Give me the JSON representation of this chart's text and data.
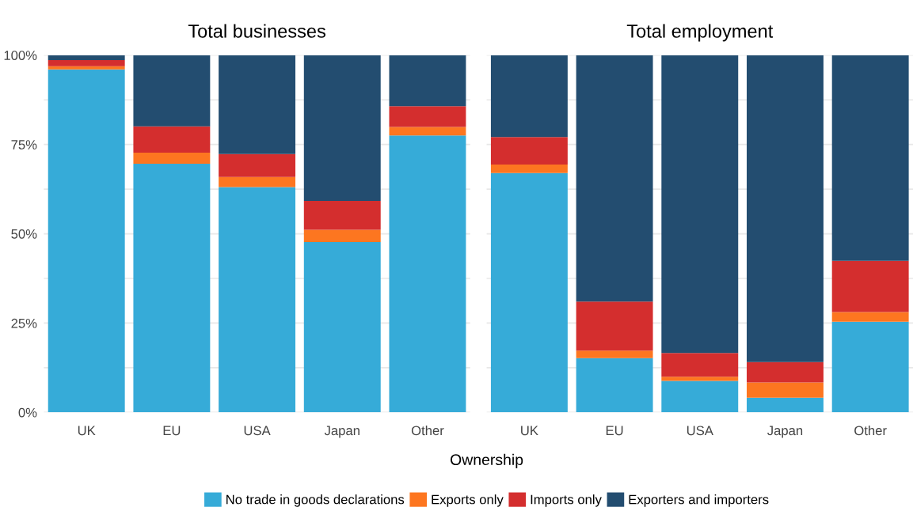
{
  "chart_data": [
    {
      "type": "bar",
      "title": "Total businesses",
      "xlabel": "Ownership",
      "stacked": true,
      "categories": [
        "UK",
        "EU",
        "USA",
        "Japan",
        "Other"
      ],
      "series": [
        {
          "name": "No trade in goods declarations",
          "color": "#36abd8",
          "values": [
            96.0,
            69.6,
            63.1,
            47.7,
            77.5
          ]
        },
        {
          "name": "Exports only",
          "color": "#fd7620",
          "values": [
            0.9,
            3.1,
            2.8,
            3.4,
            2.4
          ]
        },
        {
          "name": "Imports only",
          "color": "#d42e2e",
          "values": [
            1.7,
            7.4,
            6.4,
            8.1,
            5.8
          ]
        },
        {
          "name": "Exporters and importers",
          "color": "#234d70",
          "values": [
            1.4,
            19.9,
            27.7,
            40.8,
            14.3
          ]
        }
      ],
      "ylim": [
        0,
        100
      ],
      "yticks": [
        {
          "value": 0,
          "label": "0%"
        },
        {
          "value": 12.5,
          "label": null
        },
        {
          "value": 25,
          "label": "25%"
        },
        {
          "value": 37.5,
          "label": null
        },
        {
          "value": 50,
          "label": "50%"
        },
        {
          "value": 62.5,
          "label": null
        },
        {
          "value": 75,
          "label": "75%"
        },
        {
          "value": 87.5,
          "label": null
        },
        {
          "value": 100,
          "label": "100%"
        }
      ],
      "grid": "y",
      "legend": "bottom"
    },
    {
      "type": "bar",
      "title": "Total employment",
      "stacked": true,
      "categories": [
        "UK",
        "EU",
        "USA",
        "Japan",
        "Other"
      ],
      "series": [
        {
          "color": "#36abd8",
          "values": [
            67.0,
            15.2,
            8.8,
            4.1,
            25.4
          ]
        },
        {
          "color": "#fd7620",
          "values": [
            2.4,
            2.1,
            1.2,
            4.3,
            2.7
          ]
        },
        {
          "color": "#d42e2e",
          "values": [
            7.7,
            13.7,
            6.6,
            5.7,
            14.3
          ]
        },
        {
          "color": "#234d70",
          "values": [
            22.9,
            69.0,
            83.4,
            85.9,
            57.6
          ]
        }
      ],
      "ylim": [
        0,
        100
      ],
      "yticks": [
        {
          "value": 0,
          "label": null
        },
        {
          "value": 12.5,
          "label": null
        },
        {
          "value": 25,
          "label": null
        },
        {
          "value": 37.5,
          "label": null
        },
        {
          "value": 50,
          "label": null
        },
        {
          "value": 62.5,
          "label": null
        },
        {
          "value": 75,
          "label": null
        },
        {
          "value": 87.5,
          "label": null
        },
        {
          "value": 100,
          "label": null
        }
      ],
      "grid": "y",
      "tick_labels": "x"
    }
  ]
}
